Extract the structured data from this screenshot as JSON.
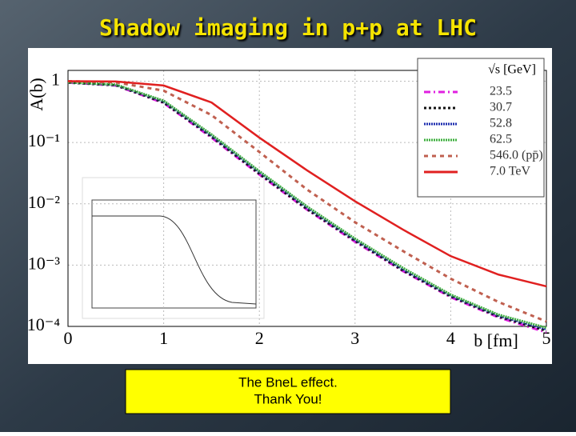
{
  "slide": {
    "title": "Shadow imaging in p+p at LHC",
    "caption": [
      "The BneL effect.",
      "Thank You!"
    ]
  },
  "chart_data": {
    "type": "line",
    "x_label": "b [fm]",
    "y_label": "A(b)",
    "legend_title": "√s [GeV]",
    "x": [
      0,
      0.5,
      1,
      1.5,
      2,
      2.5,
      3,
      3.5,
      4,
      4.5,
      5
    ],
    "xlim": [
      0,
      5
    ],
    "xticks": [
      0,
      1,
      2,
      3,
      4,
      5
    ],
    "ylim": [
      0.0001,
      1.5
    ],
    "log_y": true,
    "grid": true,
    "yticks": [
      {
        "value": 0.0001,
        "label": "10⁻⁴"
      },
      {
        "value": 0.001,
        "label": "10⁻³"
      },
      {
        "value": 0.01,
        "label": "10⁻²"
      },
      {
        "value": 0.1,
        "label": "10⁻¹"
      },
      1
    ],
    "series": [
      {
        "name": "23.5",
        "color": "#e020e0",
        "values": [
          0.95,
          0.85,
          0.44,
          0.12,
          0.03,
          0.008,
          0.0024,
          0.0008,
          0.0003,
          0.00014,
          8e-05
        ]
      },
      {
        "name": "30.7",
        "color": "#111111",
        "values": [
          0.95,
          0.86,
          0.45,
          0.125,
          0.031,
          0.0082,
          0.0025,
          0.00082,
          0.00031,
          0.000145,
          8.5e-05
        ]
      },
      {
        "name": "52.8",
        "color": "#2030b0",
        "values": [
          0.96,
          0.87,
          0.47,
          0.13,
          0.033,
          0.0087,
          0.0026,
          0.00086,
          0.00032,
          0.00015,
          9e-05
        ]
      },
      {
        "name": "62.5",
        "color": "#40b040",
        "values": [
          0.96,
          0.88,
          0.48,
          0.135,
          0.034,
          0.009,
          0.0027,
          0.0009,
          0.00033,
          0.000155,
          9.5e-05
        ]
      },
      {
        "name": "546.0 (pp̄)",
        "color": "#c06050",
        "values": [
          1,
          0.96,
          0.7,
          0.28,
          0.07,
          0.017,
          0.005,
          0.0017,
          0.0006,
          0.00025,
          0.00012
        ]
      },
      {
        "name": "7.0 TeV",
        "color": "#e02020",
        "values": [
          1,
          0.99,
          0.85,
          0.45,
          0.12,
          0.035,
          0.011,
          0.0038,
          0.0014,
          0.0007,
          0.00045
        ]
      }
    ]
  }
}
